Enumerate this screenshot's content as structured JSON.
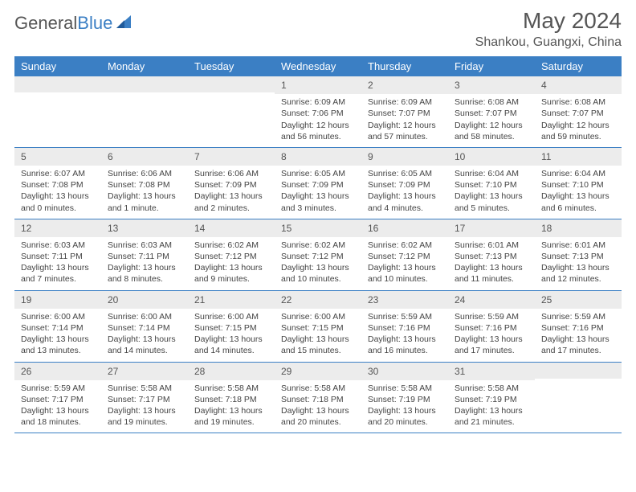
{
  "logo": {
    "word1": "General",
    "word2": "Blue"
  },
  "title": "May 2024",
  "location": "Shankou, Guangxi, China",
  "colors": {
    "header_bg": "#3b7fc4",
    "header_text": "#ffffff",
    "daynum_bg": "#ececec",
    "border": "#3b7fc4",
    "text": "#444444",
    "title_text": "#555555"
  },
  "dayNames": [
    "Sunday",
    "Monday",
    "Tuesday",
    "Wednesday",
    "Thursday",
    "Friday",
    "Saturday"
  ],
  "weeks": [
    [
      {
        "n": "",
        "sr": "",
        "ss": "",
        "dl": ""
      },
      {
        "n": "",
        "sr": "",
        "ss": "",
        "dl": ""
      },
      {
        "n": "",
        "sr": "",
        "ss": "",
        "dl": ""
      },
      {
        "n": "1",
        "sr": "Sunrise: 6:09 AM",
        "ss": "Sunset: 7:06 PM",
        "dl": "Daylight: 12 hours and 56 minutes."
      },
      {
        "n": "2",
        "sr": "Sunrise: 6:09 AM",
        "ss": "Sunset: 7:07 PM",
        "dl": "Daylight: 12 hours and 57 minutes."
      },
      {
        "n": "3",
        "sr": "Sunrise: 6:08 AM",
        "ss": "Sunset: 7:07 PM",
        "dl": "Daylight: 12 hours and 58 minutes."
      },
      {
        "n": "4",
        "sr": "Sunrise: 6:08 AM",
        "ss": "Sunset: 7:07 PM",
        "dl": "Daylight: 12 hours and 59 minutes."
      }
    ],
    [
      {
        "n": "5",
        "sr": "Sunrise: 6:07 AM",
        "ss": "Sunset: 7:08 PM",
        "dl": "Daylight: 13 hours and 0 minutes."
      },
      {
        "n": "6",
        "sr": "Sunrise: 6:06 AM",
        "ss": "Sunset: 7:08 PM",
        "dl": "Daylight: 13 hours and 1 minute."
      },
      {
        "n": "7",
        "sr": "Sunrise: 6:06 AM",
        "ss": "Sunset: 7:09 PM",
        "dl": "Daylight: 13 hours and 2 minutes."
      },
      {
        "n": "8",
        "sr": "Sunrise: 6:05 AM",
        "ss": "Sunset: 7:09 PM",
        "dl": "Daylight: 13 hours and 3 minutes."
      },
      {
        "n": "9",
        "sr": "Sunrise: 6:05 AM",
        "ss": "Sunset: 7:09 PM",
        "dl": "Daylight: 13 hours and 4 minutes."
      },
      {
        "n": "10",
        "sr": "Sunrise: 6:04 AM",
        "ss": "Sunset: 7:10 PM",
        "dl": "Daylight: 13 hours and 5 minutes."
      },
      {
        "n": "11",
        "sr": "Sunrise: 6:04 AM",
        "ss": "Sunset: 7:10 PM",
        "dl": "Daylight: 13 hours and 6 minutes."
      }
    ],
    [
      {
        "n": "12",
        "sr": "Sunrise: 6:03 AM",
        "ss": "Sunset: 7:11 PM",
        "dl": "Daylight: 13 hours and 7 minutes."
      },
      {
        "n": "13",
        "sr": "Sunrise: 6:03 AM",
        "ss": "Sunset: 7:11 PM",
        "dl": "Daylight: 13 hours and 8 minutes."
      },
      {
        "n": "14",
        "sr": "Sunrise: 6:02 AM",
        "ss": "Sunset: 7:12 PM",
        "dl": "Daylight: 13 hours and 9 minutes."
      },
      {
        "n": "15",
        "sr": "Sunrise: 6:02 AM",
        "ss": "Sunset: 7:12 PM",
        "dl": "Daylight: 13 hours and 10 minutes."
      },
      {
        "n": "16",
        "sr": "Sunrise: 6:02 AM",
        "ss": "Sunset: 7:12 PM",
        "dl": "Daylight: 13 hours and 10 minutes."
      },
      {
        "n": "17",
        "sr": "Sunrise: 6:01 AM",
        "ss": "Sunset: 7:13 PM",
        "dl": "Daylight: 13 hours and 11 minutes."
      },
      {
        "n": "18",
        "sr": "Sunrise: 6:01 AM",
        "ss": "Sunset: 7:13 PM",
        "dl": "Daylight: 13 hours and 12 minutes."
      }
    ],
    [
      {
        "n": "19",
        "sr": "Sunrise: 6:00 AM",
        "ss": "Sunset: 7:14 PM",
        "dl": "Daylight: 13 hours and 13 minutes."
      },
      {
        "n": "20",
        "sr": "Sunrise: 6:00 AM",
        "ss": "Sunset: 7:14 PM",
        "dl": "Daylight: 13 hours and 14 minutes."
      },
      {
        "n": "21",
        "sr": "Sunrise: 6:00 AM",
        "ss": "Sunset: 7:15 PM",
        "dl": "Daylight: 13 hours and 14 minutes."
      },
      {
        "n": "22",
        "sr": "Sunrise: 6:00 AM",
        "ss": "Sunset: 7:15 PM",
        "dl": "Daylight: 13 hours and 15 minutes."
      },
      {
        "n": "23",
        "sr": "Sunrise: 5:59 AM",
        "ss": "Sunset: 7:16 PM",
        "dl": "Daylight: 13 hours and 16 minutes."
      },
      {
        "n": "24",
        "sr": "Sunrise: 5:59 AM",
        "ss": "Sunset: 7:16 PM",
        "dl": "Daylight: 13 hours and 17 minutes."
      },
      {
        "n": "25",
        "sr": "Sunrise: 5:59 AM",
        "ss": "Sunset: 7:16 PM",
        "dl": "Daylight: 13 hours and 17 minutes."
      }
    ],
    [
      {
        "n": "26",
        "sr": "Sunrise: 5:59 AM",
        "ss": "Sunset: 7:17 PM",
        "dl": "Daylight: 13 hours and 18 minutes."
      },
      {
        "n": "27",
        "sr": "Sunrise: 5:58 AM",
        "ss": "Sunset: 7:17 PM",
        "dl": "Daylight: 13 hours and 19 minutes."
      },
      {
        "n": "28",
        "sr": "Sunrise: 5:58 AM",
        "ss": "Sunset: 7:18 PM",
        "dl": "Daylight: 13 hours and 19 minutes."
      },
      {
        "n": "29",
        "sr": "Sunrise: 5:58 AM",
        "ss": "Sunset: 7:18 PM",
        "dl": "Daylight: 13 hours and 20 minutes."
      },
      {
        "n": "30",
        "sr": "Sunrise: 5:58 AM",
        "ss": "Sunset: 7:19 PM",
        "dl": "Daylight: 13 hours and 20 minutes."
      },
      {
        "n": "31",
        "sr": "Sunrise: 5:58 AM",
        "ss": "Sunset: 7:19 PM",
        "dl": "Daylight: 13 hours and 21 minutes."
      },
      {
        "n": "",
        "sr": "",
        "ss": "",
        "dl": ""
      }
    ]
  ]
}
